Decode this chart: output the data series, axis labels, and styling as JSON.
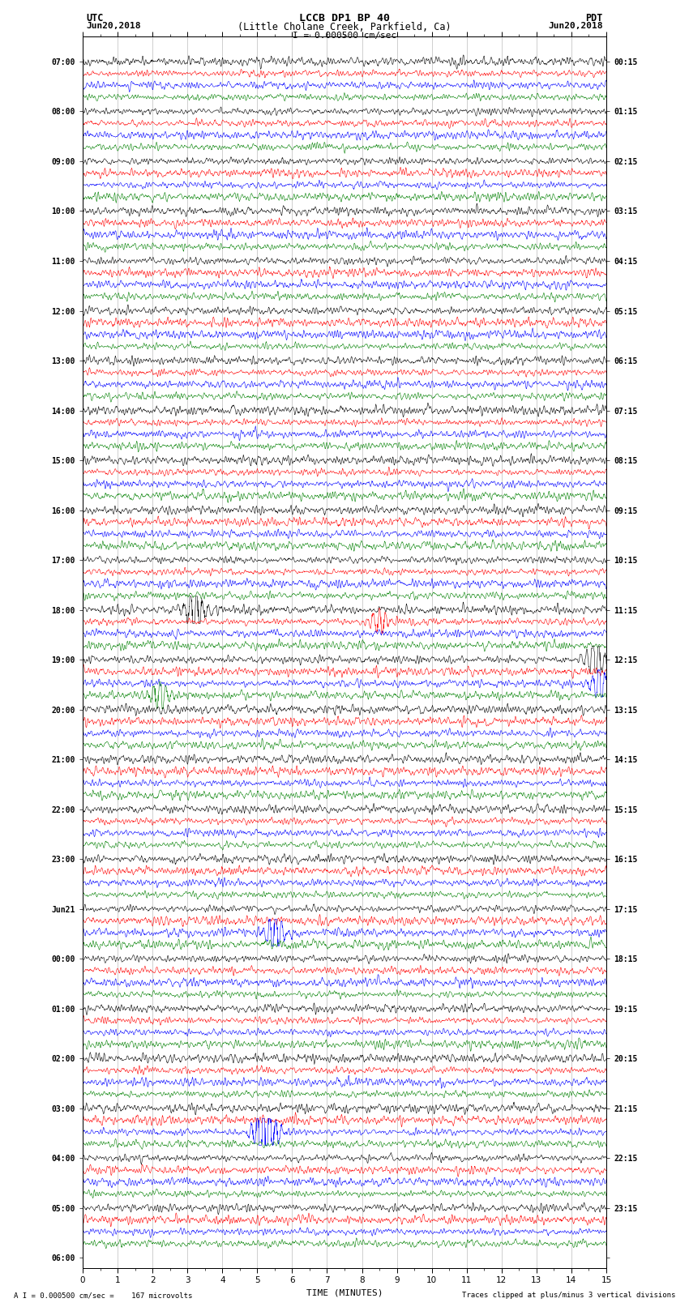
{
  "title_line1": "LCCB DP1 BP 40",
  "title_line2": "(Little Cholane Creek, Parkfield, Ca)",
  "scale_text": "I = 0.000500 cm/sec",
  "utc_label": "UTC",
  "pdt_label": "PDT",
  "date_left": "Jun20,2018",
  "date_right": "Jun20,2018",
  "xlabel": "TIME (MINUTES)",
  "bottom_left": "A I = 0.000500 cm/sec =    167 microvolts",
  "bottom_right": "Traces clipped at plus/minus 3 vertical divisions",
  "colors": [
    "black",
    "red",
    "blue",
    "green"
  ],
  "num_row_groups": 24,
  "traces_per_group": 4,
  "bg_color": "white",
  "left_times_utc": [
    "07:00",
    "08:00",
    "09:00",
    "10:00",
    "11:00",
    "12:00",
    "13:00",
    "14:00",
    "15:00",
    "16:00",
    "17:00",
    "18:00",
    "19:00",
    "20:00",
    "21:00",
    "22:00",
    "23:00",
    "Jun21",
    "00:00",
    "01:00",
    "02:00",
    "03:00",
    "04:00",
    "05:00",
    "06:00"
  ],
  "right_times_pdt": [
    "00:15",
    "01:15",
    "02:15",
    "03:15",
    "04:15",
    "05:15",
    "06:15",
    "07:15",
    "08:15",
    "09:15",
    "10:15",
    "11:15",
    "12:15",
    "13:15",
    "14:15",
    "15:15",
    "16:15",
    "17:15",
    "18:15",
    "19:15",
    "20:15",
    "21:15",
    "22:15",
    "23:15"
  ],
  "xmin": 0,
  "xmax": 15,
  "noise_seed": 12345,
  "special_events": [
    {
      "group": 11,
      "color_idx": 0,
      "minute": 3.2,
      "amplitude": 8.0
    },
    {
      "group": 12,
      "color_idx": 3,
      "minute": 2.2,
      "amplitude": 5.0
    },
    {
      "group": 12,
      "color_idx": 2,
      "minute": 14.8,
      "amplitude": 5.0
    },
    {
      "group": 12,
      "color_idx": 0,
      "minute": 14.7,
      "amplitude": 6.0
    },
    {
      "group": 11,
      "color_idx": 1,
      "minute": 8.5,
      "amplitude": 4.0
    },
    {
      "group": 17,
      "color_idx": 2,
      "minute": 5.5,
      "amplitude": 6.0
    },
    {
      "group": 21,
      "color_idx": 2,
      "minute": 5.2,
      "amplitude": 12.0
    }
  ]
}
